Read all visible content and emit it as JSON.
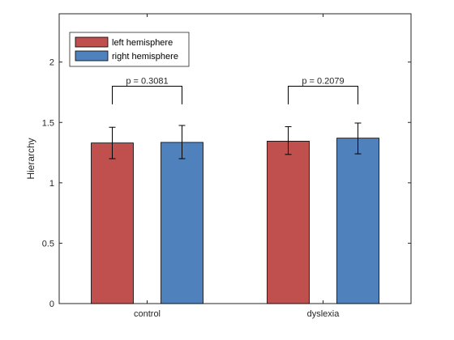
{
  "chart_data": {
    "type": "bar",
    "categories": [
      "control",
      "dyslexia"
    ],
    "ylabel": "Hierarchy",
    "xlabel": "",
    "ylim": [
      0,
      2.4
    ],
    "yticks": [
      0,
      0.5,
      1,
      1.5,
      2
    ],
    "ytick_labels": [
      "0",
      "0.5",
      "1",
      "1.5",
      "2"
    ],
    "grid": false,
    "legend": "top-left",
    "series": [
      {
        "name": "left hemisphere",
        "color": "#c0504d",
        "values": [
          1.33,
          1.345
        ],
        "error_low": [
          1.2,
          1.235
        ],
        "error_high": [
          1.46,
          1.465
        ]
      },
      {
        "name": "right hemisphere",
        "color": "#4f81bd",
        "values": [
          1.335,
          1.37
        ],
        "error_low": [
          1.2,
          1.24
        ],
        "error_high": [
          1.475,
          1.495
        ]
      }
    ],
    "annotations": [
      {
        "category": "control",
        "text": "p = 0.3081",
        "bracket_y": 1.8,
        "bracket_drop": 1.65
      },
      {
        "category": "dyslexia",
        "text": "p = 0.2079",
        "bracket_y": 1.8,
        "bracket_drop": 1.65
      }
    ]
  }
}
